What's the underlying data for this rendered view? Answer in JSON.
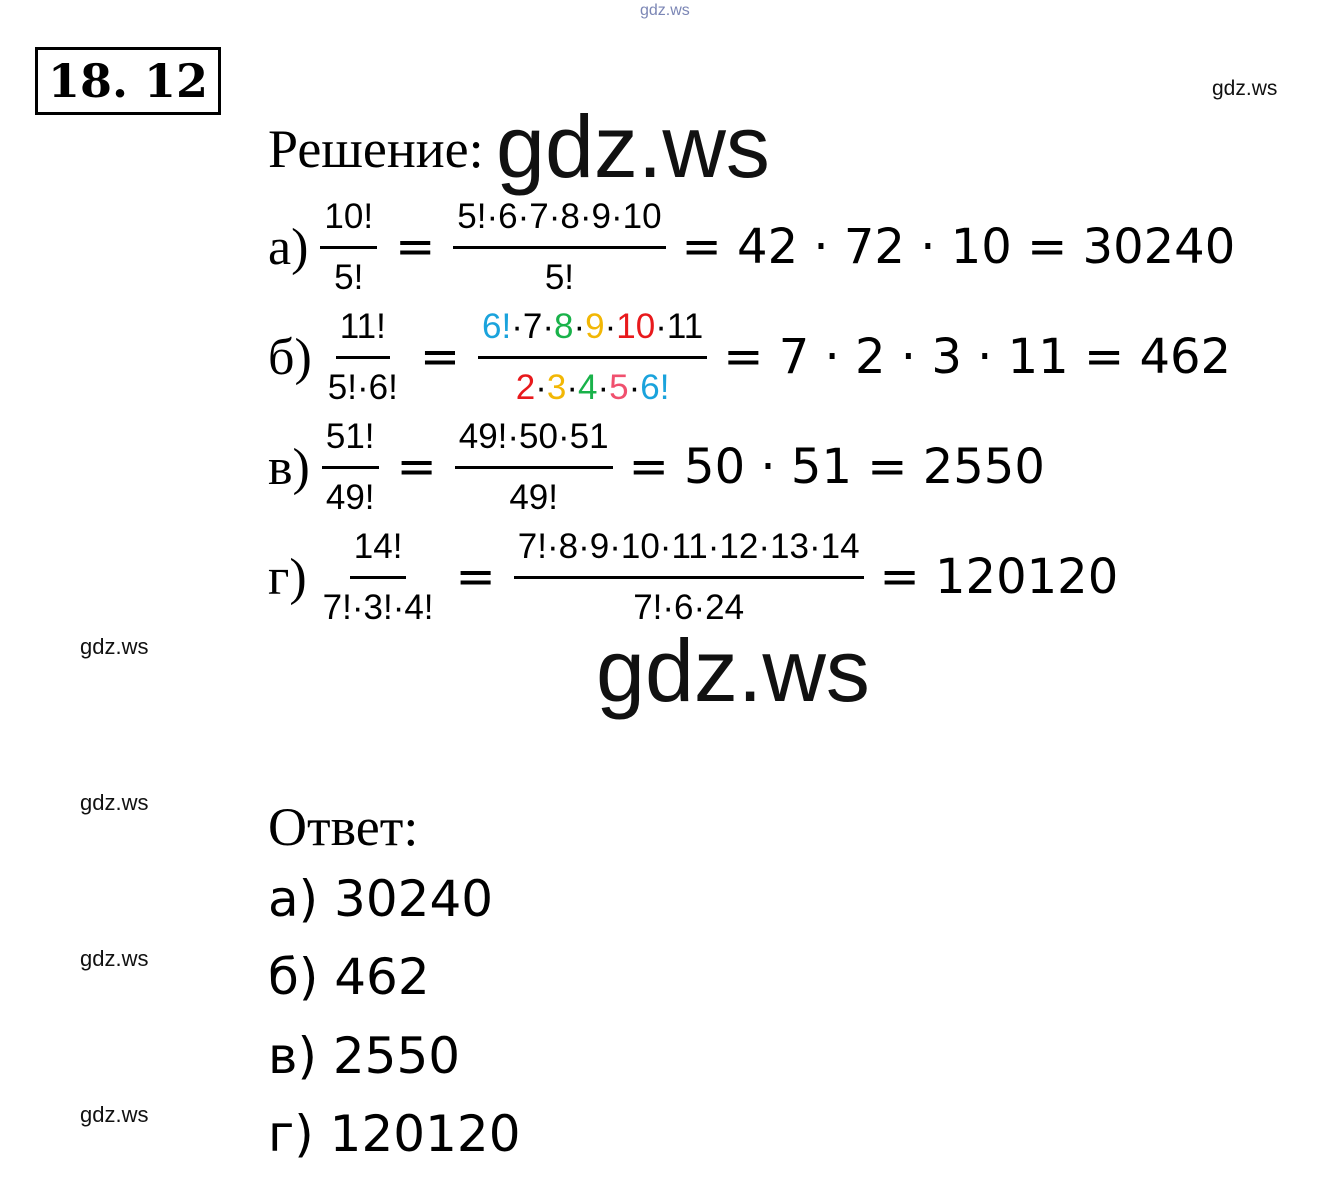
{
  "watermarks": [
    "gdz.ws",
    "gdz.ws",
    "gdz.ws",
    "gdz.ws",
    "gdz.ws",
    "gdz.ws",
    "gdz.ws",
    "gdz.ws"
  ],
  "problem_number": "18. 12",
  "solution_label": "Решение:",
  "items": [
    {
      "label": "а)",
      "frac1": {
        "num": "10!",
        "den": "5!"
      },
      "sign": "=",
      "frac2": {
        "num": [
          {
            "text": "5!·6·7·8·9·10",
            "color": "#000000"
          }
        ],
        "den": [
          {
            "text": "5!",
            "color": "#000000"
          }
        ]
      },
      "rest": "= 42 · 72 · 10 =  30240"
    },
    {
      "label": "б)",
      "frac1": {
        "num": "11!",
        "den": "5!·6!"
      },
      "sign": "=",
      "frac2": {
        "num": [
          {
            "text": "6!",
            "color": "#1aa3dc"
          },
          {
            "text": "·7·",
            "color": "#000000"
          },
          {
            "text": "8",
            "color": "#19b24a"
          },
          {
            "text": "·",
            "color": "#000000"
          },
          {
            "text": "9",
            "color": "#f2b705"
          },
          {
            "text": "·",
            "color": "#000000"
          },
          {
            "text": "10",
            "color": "#e8191c"
          },
          {
            "text": "·11",
            "color": "#000000"
          }
        ],
        "den": [
          {
            "text": "2",
            "color": "#e8191c"
          },
          {
            "text": "·",
            "color": "#000000"
          },
          {
            "text": "3",
            "color": "#f2b705"
          },
          {
            "text": "·",
            "color": "#000000"
          },
          {
            "text": "4",
            "color": "#19b24a"
          },
          {
            "text": "·",
            "color": "#000000"
          },
          {
            "text": "5",
            "color": "#f0506e"
          },
          {
            "text": "·",
            "color": "#000000"
          },
          {
            "text": "6!",
            "color": "#1aa3dc"
          }
        ]
      },
      "rest": "= 7 · 2 · 3 · 11 = 462"
    },
    {
      "label": "в)",
      "frac1": {
        "num": "51!",
        "den": "49!"
      },
      "sign": "=",
      "frac2": {
        "num": [
          {
            "text": "49!·50·51",
            "color": "#000000"
          }
        ],
        "den": [
          {
            "text": "49!",
            "color": "#000000"
          }
        ]
      },
      "rest": "= 50 · 51 = 2550"
    },
    {
      "label": "г)",
      "frac1": {
        "num": "14!",
        "den": "7!·3!·4!"
      },
      "sign": "=",
      "frac2": {
        "num": [
          {
            "text": "7!·8·9·10·11·12·13·14",
            "color": "#000000"
          }
        ],
        "den": [
          {
            "text": "7!·6·24",
            "color": "#000000"
          }
        ]
      },
      "rest": "= 120120"
    }
  ],
  "answer_label": "Ответ:",
  "answers": [
    "а) 30240",
    "б) 462",
    "в) 2550",
    "г) 120120"
  ]
}
